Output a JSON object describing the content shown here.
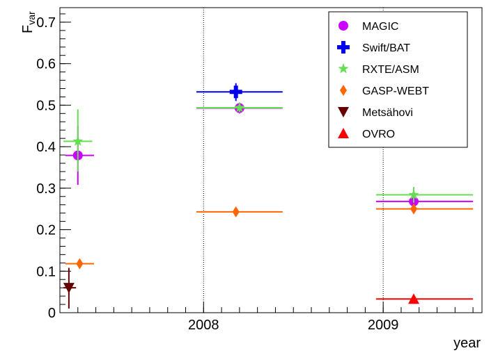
{
  "chart_data": {
    "type": "scatter",
    "title": "",
    "xlabel": "year",
    "ylabel": {
      "main": "F",
      "sub": "var"
    },
    "xlim": [
      2007.2,
      2009.55
    ],
    "ylim": [
      0,
      0.735
    ],
    "x_ticks": [
      {
        "value": 2008,
        "label": "2008"
      },
      {
        "value": 2009,
        "label": "2009"
      }
    ],
    "y_ticks": [
      {
        "value": 0,
        "label": "0"
      },
      {
        "value": 0.1,
        "label": "0.1"
      },
      {
        "value": 0.2,
        "label": "0.2"
      },
      {
        "value": 0.3,
        "label": "0.3"
      },
      {
        "value": 0.4,
        "label": "0.4"
      },
      {
        "value": 0.5,
        "label": "0.5"
      },
      {
        "value": 0.6,
        "label": "0.6"
      },
      {
        "value": 0.7,
        "label": "0.7"
      }
    ],
    "grid": "vertical dotted lines at year boundaries",
    "legend_position": "top-right",
    "series": [
      {
        "name": "MAGIC",
        "color": "#cc00ff",
        "marker": "circle",
        "points": [
          {
            "x": 2007.3,
            "xerr": [
              2007.23,
              2007.39
            ],
            "y": 0.379,
            "yerr": [
              0.308,
              0.45
            ]
          },
          {
            "x": 2008.2,
            "xerr": [
              2007.96,
              2008.44
            ],
            "y": 0.493,
            "yerr": [
              0.48,
              0.506
            ]
          },
          {
            "x": 2009.17,
            "xerr": [
              2008.96,
              2009.5
            ],
            "y": 0.268,
            "yerr": [
              0.245,
              0.29
            ]
          }
        ]
      },
      {
        "name": "Swift/BAT",
        "color": "#0000ee",
        "marker": "cross",
        "points": [
          {
            "x": 2008.18,
            "xerr": [
              2007.96,
              2008.44
            ],
            "y": 0.532,
            "yerr": [
              0.51,
              0.553
            ]
          }
        ]
      },
      {
        "name": "RXTE/ASM",
        "color": "#66dd55",
        "marker": "star",
        "points": [
          {
            "x": 2007.3,
            "xerr": [
              2007.22,
              2007.38
            ],
            "y": 0.413,
            "yerr": [
              0.34,
              0.49
            ]
          },
          {
            "x": 2008.2,
            "xerr": [
              2007.96,
              2008.44
            ],
            "y": 0.494,
            "yerr": [
              0.483,
              0.505
            ]
          },
          {
            "x": 2009.17,
            "xerr": [
              2008.96,
              2009.5
            ],
            "y": 0.284,
            "yerr": [
              0.265,
              0.303
            ]
          }
        ]
      },
      {
        "name": "GASP-WEBT",
        "color": "#ff6600",
        "marker": "diamond",
        "points": [
          {
            "x": 2007.31,
            "xerr": [
              2007.23,
              2007.39
            ],
            "y": 0.118,
            "yerr": [
              0.113,
              0.123
            ]
          },
          {
            "x": 2008.18,
            "xerr": [
              2007.96,
              2008.44
            ],
            "y": 0.243,
            "yerr": [
              0.238,
              0.248
            ]
          },
          {
            "x": 2009.17,
            "xerr": [
              2008.96,
              2009.5
            ],
            "y": 0.25,
            "yerr": [
              0.245,
              0.255
            ]
          }
        ]
      },
      {
        "name": "Metsähovi",
        "color": "#660000",
        "marker": "triangle-down",
        "points": [
          {
            "x": 2007.25,
            "xerr": [
              2007.22,
              2007.29
            ],
            "y": 0.06,
            "yerr": [
              0.01,
              0.108
            ]
          }
        ]
      },
      {
        "name": "OVRO",
        "color": "#ff0000",
        "marker": "triangle-up",
        "points": [
          {
            "x": 2009.17,
            "xerr": [
              2008.96,
              2009.5
            ],
            "y": 0.033,
            "yerr": [
              0.029,
              0.037
            ]
          }
        ]
      }
    ]
  }
}
